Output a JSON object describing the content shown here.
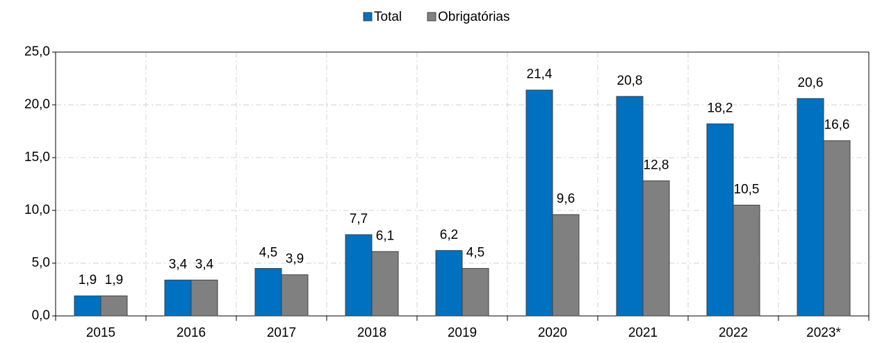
{
  "chart_data": {
    "type": "bar",
    "categories": [
      "2015",
      "2016",
      "2017",
      "2018",
      "2019",
      "2020",
      "2021",
      "2022",
      "2023*"
    ],
    "series": [
      {
        "name": "Total",
        "color": "#0070c0",
        "values": [
          1.9,
          3.4,
          4.5,
          7.7,
          6.2,
          21.4,
          20.8,
          18.2,
          20.6
        ],
        "value_labels": [
          "1,9",
          "3,4",
          "4,5",
          "7,7",
          "6,2",
          "21,4",
          "20,8",
          "18,2",
          "20,6"
        ]
      },
      {
        "name": "Obrigatórias",
        "color": "#808080",
        "values": [
          1.9,
          3.4,
          3.9,
          6.1,
          4.5,
          9.6,
          12.8,
          10.5,
          16.6
        ],
        "value_labels": [
          "1,9",
          "3,4",
          "3,9",
          "6,1",
          "4,5",
          "9,6",
          "12,8",
          "10,5",
          "16,6"
        ]
      }
    ],
    "ylim": [
      0,
      25
    ],
    "yticks": [
      {
        "value": 0,
        "label": "0,0"
      },
      {
        "value": 5,
        "label": "5,0"
      },
      {
        "value": 10,
        "label": "10,0"
      },
      {
        "value": 15,
        "label": "15,0"
      },
      {
        "value": 20,
        "label": "20,0"
      },
      {
        "value": 25,
        "label": "25,0"
      }
    ],
    "grid": true,
    "legend": "top"
  }
}
